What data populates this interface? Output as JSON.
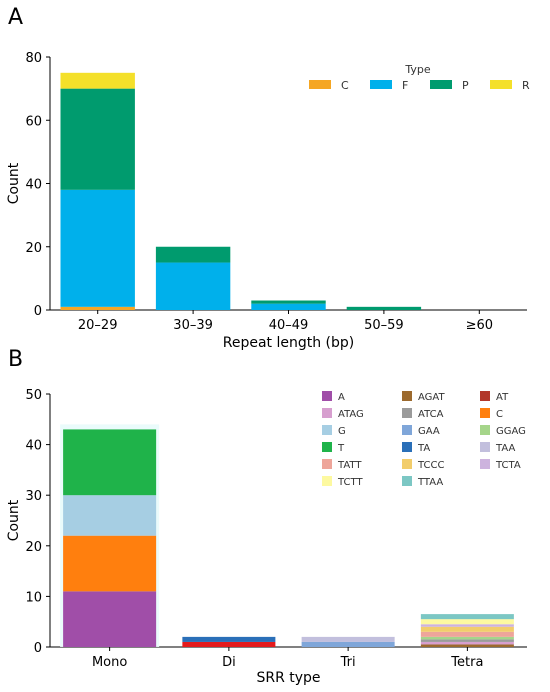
{
  "chart_data": [
    {
      "panel_label": "A",
      "type": "bar",
      "stacked": true,
      "categories": [
        "20–29",
        "30–39",
        "40–49",
        "50–59",
        "≥60"
      ],
      "series": [
        {
          "name": "C",
          "color": "#F5A623",
          "values": [
            1,
            0,
            0,
            0,
            0
          ]
        },
        {
          "name": "F",
          "color": "#00B0EB",
          "values": [
            37,
            15,
            2,
            0,
            0
          ]
        },
        {
          "name": "P",
          "color": "#009B6E",
          "values": [
            32,
            5,
            1,
            1,
            0
          ]
        },
        {
          "name": "R",
          "color": "#F4E02A",
          "values": [
            5,
            0,
            0,
            0,
            0
          ]
        }
      ],
      "legend_title": "Type",
      "legend_position": "top-right",
      "xlabel": "Repeat length (bp)",
      "ylabel": "Count",
      "ylim": [
        0,
        80
      ],
      "yticks": [
        0,
        20,
        40,
        60,
        80
      ]
    },
    {
      "panel_label": "B",
      "type": "bar",
      "stacked": true,
      "categories": [
        "Mono",
        "Di",
        "Tri",
        "Tetra"
      ],
      "series": [
        {
          "name": "A",
          "color": "#A04EA8",
          "values": [
            11,
            0,
            0,
            0
          ]
        },
        {
          "name": "AGAT",
          "color": "#9C6A2E",
          "values": [
            0,
            0,
            0,
            0.5
          ]
        },
        {
          "name": "AT",
          "color": "#B2372A",
          "values": [
            0,
            1,
            0,
            0
          ]
        },
        {
          "name": "ATAG",
          "color": "#D79FCF",
          "values": [
            0,
            0,
            0,
            0.5
          ]
        },
        {
          "name": "ATCA",
          "color": "#9B9B9B",
          "values": [
            0,
            0,
            0,
            0.5
          ]
        },
        {
          "name": "C",
          "color": "#FF7F0E",
          "values": [
            11,
            0,
            0,
            0
          ]
        },
        {
          "name": "G",
          "color": "#A6CEE3",
          "values": [
            8,
            0,
            0,
            0
          ]
        },
        {
          "name": "GAA",
          "color": "#7FA6D9",
          "values": [
            0,
            0,
            1,
            0
          ]
        },
        {
          "name": "GGAG",
          "color": "#A5D58A",
          "values": [
            0,
            0,
            0,
            0.5
          ]
        },
        {
          "name": "T",
          "color": "#1FB34A",
          "values": [
            13,
            0,
            0,
            0
          ]
        },
        {
          "name": "TA",
          "color": "#2A6FB8",
          "values": [
            0,
            1,
            0,
            0
          ]
        },
        {
          "name": "TAA",
          "color": "#C2BFDD",
          "values": [
            0,
            0,
            1,
            0
          ]
        },
        {
          "name": "TATT",
          "color": "#EEA59A",
          "values": [
            0,
            0,
            0,
            1
          ]
        },
        {
          "name": "TCCC",
          "color": "#F2CD6B",
          "values": [
            0,
            0,
            0,
            1
          ]
        },
        {
          "name": "TCTA",
          "color": "#CDB3DE",
          "values": [
            0,
            0,
            0,
            0.5
          ]
        },
        {
          "name": "TCTT",
          "color": "#FDF9A0",
          "values": [
            0,
            0,
            0,
            1
          ]
        },
        {
          "name": "TTAA",
          "color": "#7CC7C4",
          "values": [
            0,
            0,
            0,
            1
          ]
        }
      ],
      "di_red_color": "#E41A1C",
      "legend_position": "top-right",
      "xlabel": "SRR type",
      "ylabel": "Count",
      "ylim": [
        0,
        50
      ],
      "yticks": [
        0,
        10,
        20,
        30,
        40,
        50
      ]
    }
  ]
}
